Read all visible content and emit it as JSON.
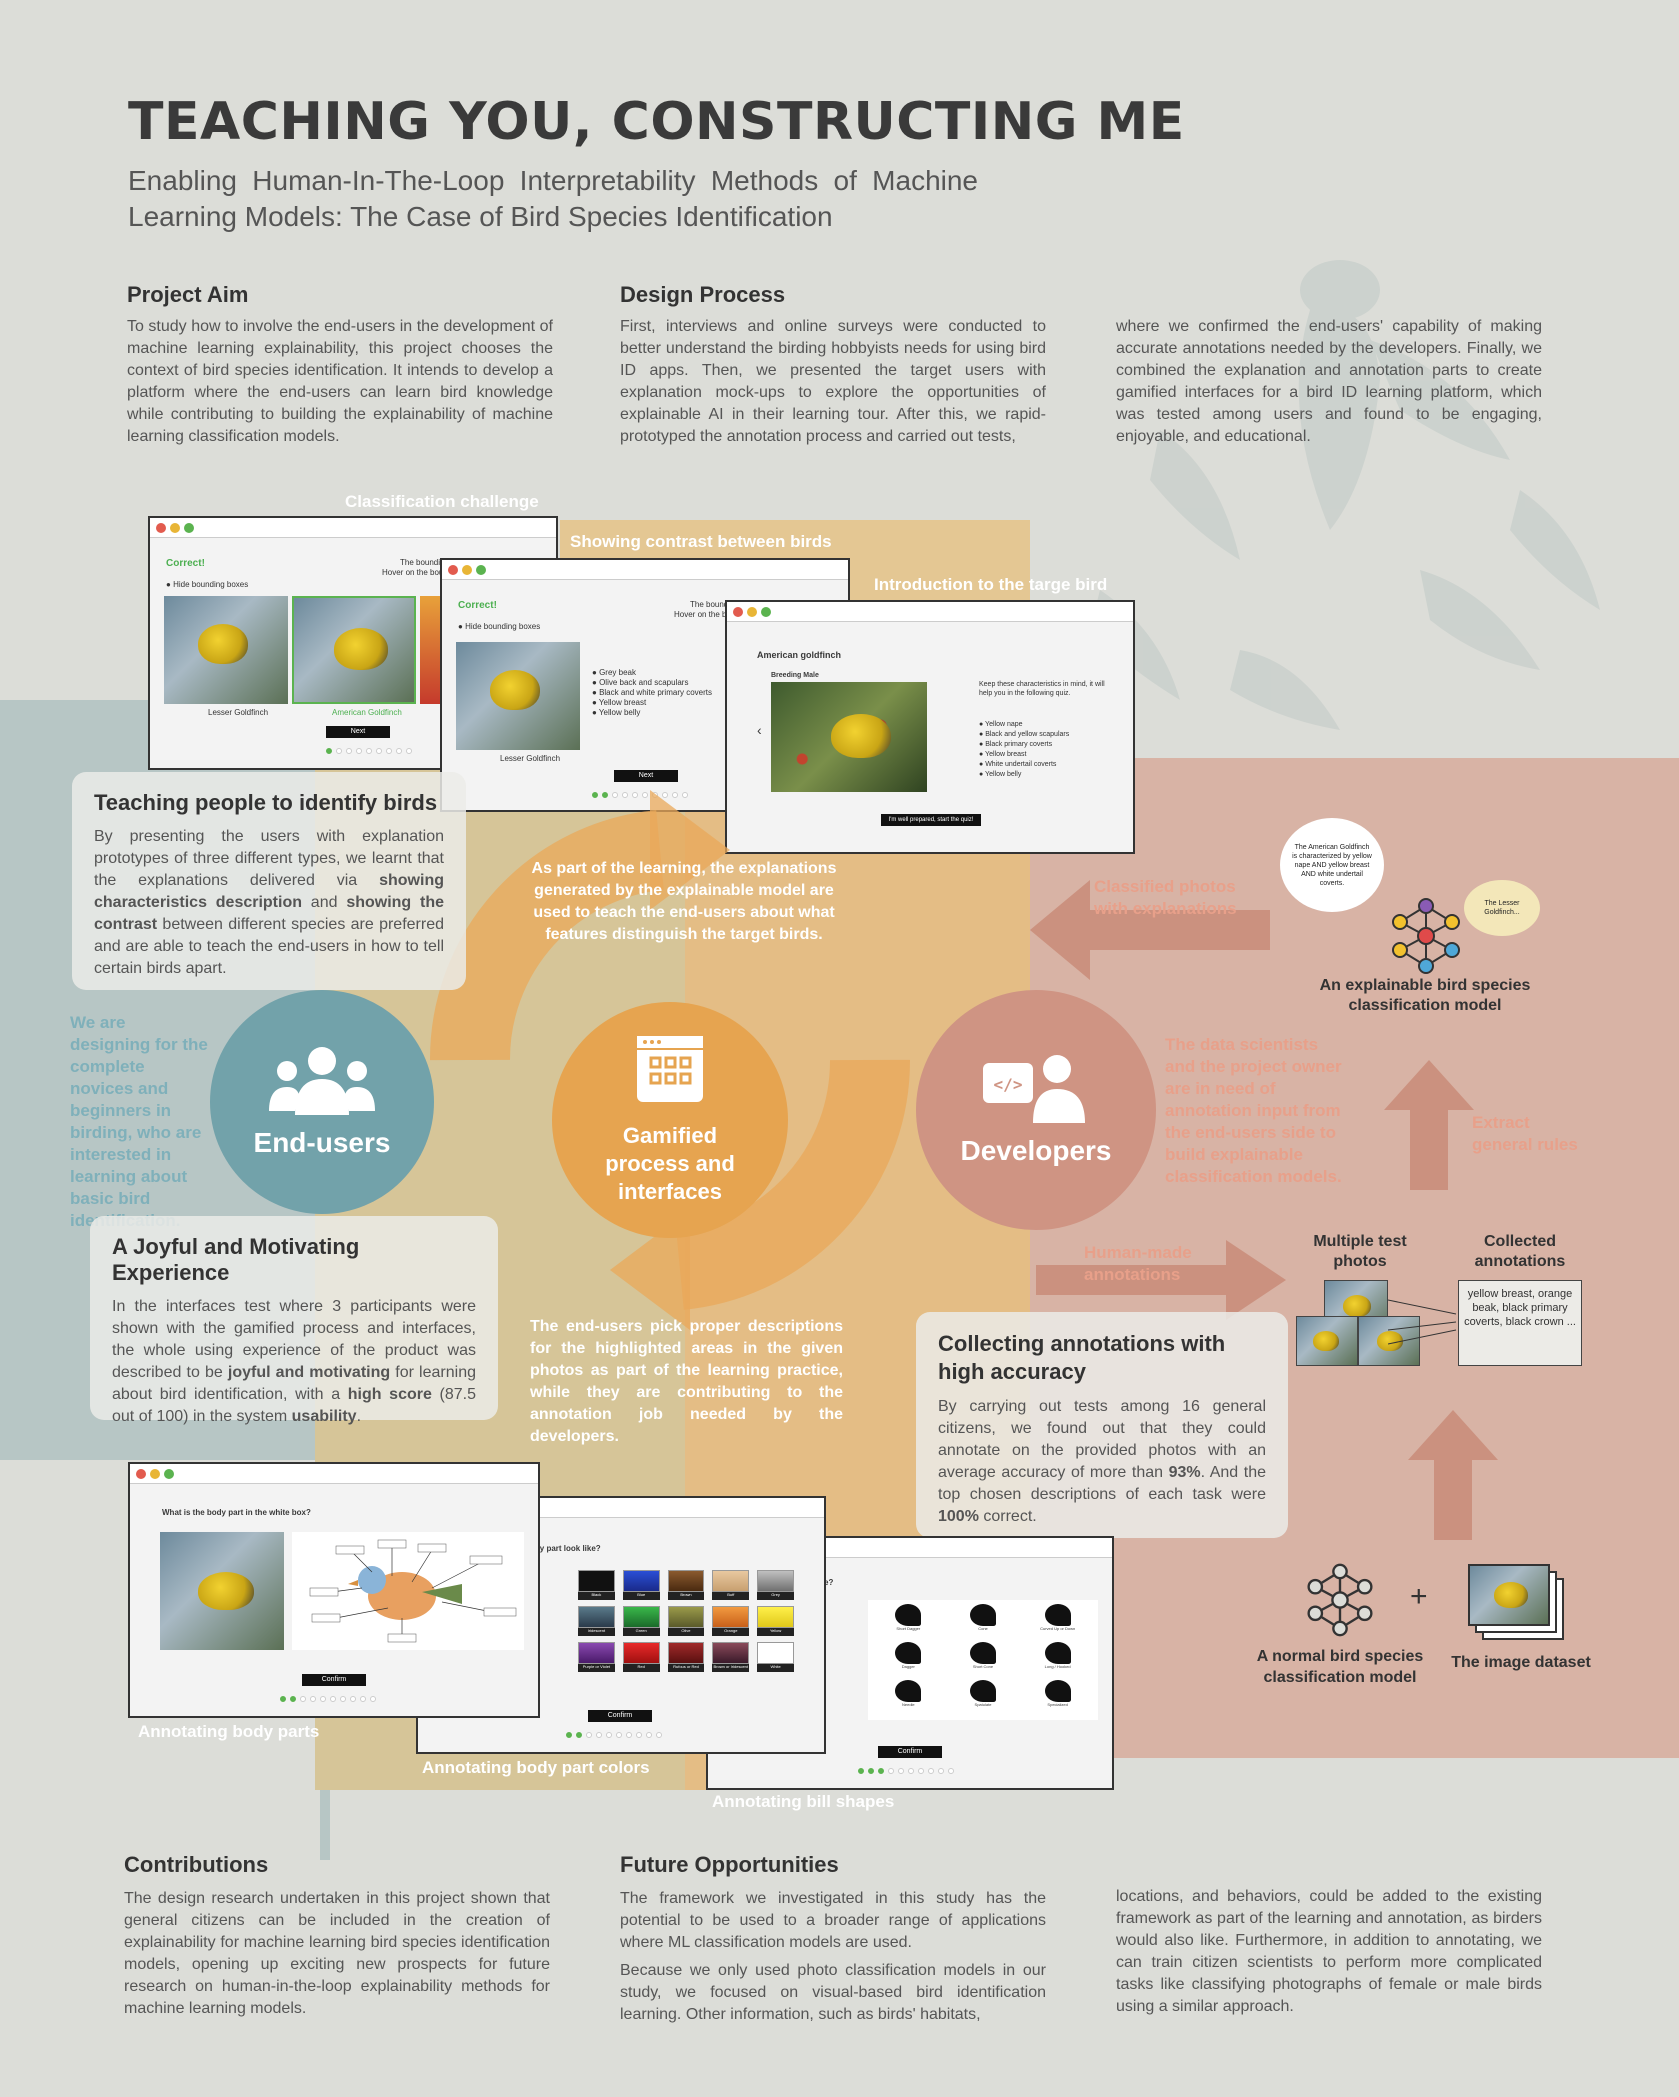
{
  "header": {
    "title": "TEACHING YOU, CONSTRUCTING ME",
    "subtitle": "Enabling Human-In-The-Loop Interpretability Methods of Machine Learning Models: The Case of Bird Species Identification"
  },
  "aim": {
    "heading": "Project Aim",
    "text": "To study how to involve the end-users in the development of machine learning explainability, this project chooses the context of bird species identification. It intends to develop a platform where the end-users can learn bird knowledge while contributing to building the explainability of machine learning classification models."
  },
  "design": {
    "heading": "Design Process",
    "text1": "First, interviews and online surveys were conducted to better understand the birding hobbyists needs for using bird ID apps. Then, we presented the target users with explanation mock-ups to explore the opportunities of explainable AI in their learning tour. After this, we rapid-prototyped the annotation process and carried out tests,",
    "text2": "where we confirmed the end-users' capability of making accurate annotations needed by the developers. Finally, we combined the explanation and annotation parts to create gamified interfaces for a bird ID learning platform, which was tested among users and found to be engaging, enjoyable, and educational."
  },
  "windows_top": {
    "label1": "Classification challenge",
    "label2": "Showing contrast between birds",
    "label3": "Introduction to the targe bird",
    "w1_correct": "Correct!",
    "w1_hide": "Hide bounding boxes",
    "w1_bounding": "The bounding",
    "w1_hover": "Hover on the boun",
    "w1_cap1": "Lesser Goldfinch",
    "w1_cap2": "American Goldfinch",
    "w1_next": "Next",
    "w2_correct": "Correct!",
    "w2_hide": "Hide bounding boxes",
    "w2_bounding": "The boundi",
    "w2_hover": "Hover on the bou",
    "w2_list": [
      "Grey beak",
      "Olive back and scapulars",
      "Black and white primary coverts",
      "Yellow breast",
      "Yellow belly"
    ],
    "w2_cap": "Lesser Goldfinch",
    "w2_next": "Next",
    "w3_title": "American goldfinch",
    "w3_sub": "Breeding Male",
    "w3_keep": "Keep these characteristics in mind, it will help you in the following quiz.",
    "w3_list": [
      "Yellow nape",
      "Black and yellow scapulars",
      "Black primary coverts",
      "Yellow breast",
      "White undertail coverts",
      "Yellow belly"
    ],
    "w3_btn": "I'm well prepared, start the quiz!"
  },
  "teaching": {
    "heading": "Teaching people to identify birds",
    "text_a": "By presenting the users with explanation prototypes of three different types, we learnt that the explanations delivered via ",
    "bold_a": "showing characteristics description",
    "text_b": " and ",
    "bold_b": "showing the contrast",
    "text_c": " between different species are preferred and are able to teach the end-users in how to tell certain birds apart."
  },
  "learning_note": "As part of the learning, the explanations generated by the explainable model are used to teach the end-users about what features distinguish the target birds.",
  "endusers": {
    "side_text": "We are designing for the complete novices and beginners in birding, who are interested in learning about basic bird identification.",
    "circle_label": "End-users"
  },
  "gamified": {
    "label": "Gamified process and interfaces"
  },
  "developers": {
    "circle_label": "Developers",
    "side_text": "The data scientists and the project owner are in need of annotation input from the end-users side to build explainable classification models."
  },
  "model_side": {
    "classified": "Classified photos with explanations",
    "bubble1": "The American Goldfinch is characterized by yellow nape AND yellow breast AND white undertail coverts.",
    "bubble2": "The Lesser Goldfinch...",
    "explainable_label": "An explainable bird species classification model",
    "extract": "Extract general rules",
    "human_made": "Human-made annotations",
    "multi_photos": "Multiple test photos",
    "collected": "Collected annotations",
    "anno_text": "yellow breast, orange beak, black primary coverts, black crown ...",
    "normal_model": "A normal bird species classification model",
    "dataset": "The image dataset",
    "plus": "+"
  },
  "joyful": {
    "heading": "A Joyful and Motivating Experience",
    "text_a": "In the interfaces test where 3 participants were shown with the gamified process and interfaces, the whole using experience of the product was described to be ",
    "bold_a": "joyful and motivating",
    "text_b": " for learning about bird identification, with a ",
    "bold_b": "high score",
    "text_c": " (87.5 out of 100) in the system ",
    "bold_c": "usability",
    "text_d": "."
  },
  "practice_note": "The end-users pick proper descriptions for the highlighted areas in the given photos as part of the learning practice, while they are contributing to the annotation job needed by the developers.",
  "collecting": {
    "heading": "Collecting annotations with high accuracy",
    "text_a": "By carrying out tests among 16 general citizens, we found out that they could annotate on the provided photos with an average accuracy of more than ",
    "bold_a": "93%",
    "text_b": ". And the top chosen descriptions of each task were ",
    "bold_b": "100%",
    "text_c": " correct."
  },
  "windows_bottom": {
    "label1": "Annotating body parts",
    "label2": "Annotating body part colors",
    "label3": "Annotating bill shapes",
    "w1_q": "What is the body part in the white box?",
    "w2_q": "ody part look like?",
    "w3_q": "e?",
    "confirm": "Confirm",
    "colors": [
      "Black",
      "Blue",
      "Brown",
      "Buff",
      "Grey",
      "Iridescent",
      "Green",
      "Olive",
      "Orange",
      "Yellow",
      "Purple or Violet",
      "Red",
      "Rufous or Red",
      "Brown or Iridescent",
      "White"
    ],
    "color_hex": [
      "#111111",
      "#2a4fd6",
      "#6b3d1f",
      "#d9b68c",
      "#9c9c9c",
      "#3a5f6a",
      "#2e9b3a",
      "#7a7a3a",
      "#e07a20",
      "#f2dc2a",
      "#5a2a7a",
      "#c82020",
      "#8a1f1f",
      "#6a3d4a",
      "#ffffff"
    ],
    "bills": [
      "Short Dagger",
      "Cone",
      "Curved Up or Down",
      "Dagger",
      "Short Cone",
      "Long / Hooked",
      "Needle",
      "Spatulate",
      "Specialized"
    ]
  },
  "contributions": {
    "heading": "Contributions",
    "text": "The design research undertaken in this project shown that general citizens can be included in the creation of explainability for machine learning bird species identification models, opening up exciting new prospects for future research on human-in-the-loop explainability methods for machine learning models."
  },
  "future": {
    "heading": "Future Opportunities",
    "text1": "The framework we investigated in this study has the potential to be used to a broader range of applications where ML classification models are used.",
    "text2": "Because we only used photo classification models in our study, we focused on visual-based bird identification learning. Other information, such as birds' habitats,",
    "text3": "locations, and behaviors, could be added to the existing framework as part of the learning and annotation, as birders would also like. Furthermore, in addition to annotating, we can train citizen scientists to perform more complicated tasks like classifying photographs of female or male birds using a similar approach."
  },
  "colors": {
    "teal": "#7fa3aa",
    "tan": "#d7bd8b",
    "orange": "#e69a4a",
    "peach": "#d9ae9d",
    "dev_circle": "#cf9483"
  }
}
